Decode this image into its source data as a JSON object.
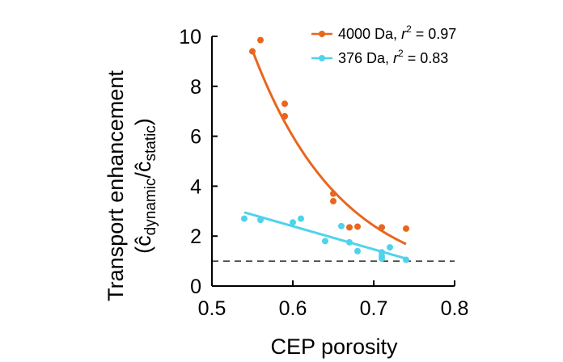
{
  "chart_data": {
    "type": "scatter",
    "xlabel": "CEP porosity",
    "ylabel": {
      "line1": "Transport enhancement",
      "open": "(",
      "c1": "ĉ",
      "sub1": "dynamic",
      "slash": "/",
      "c2": "ĉ",
      "sub2": "static",
      "close": ")"
    },
    "xlim": [
      0.5,
      0.8
    ],
    "ylim": [
      0,
      10
    ],
    "x_ticks": [
      0.5,
      0.6,
      0.7,
      0.8
    ],
    "x_tick_labels": [
      "0.5",
      "0.6",
      "0.7",
      "0.8"
    ],
    "y_ticks": [
      0,
      2,
      4,
      6,
      8,
      10
    ],
    "y_tick_labels": [
      "0",
      "2",
      "4",
      "6",
      "8",
      "10"
    ],
    "reference_line": {
      "y": 1,
      "style": "dashed"
    },
    "legend_position": "top-right",
    "series": [
      {
        "name": "4000 Da",
        "legend_prefix": "4000 Da, ",
        "r_label": "r",
        "r_exp": "2",
        "r_value": " = 0.97",
        "color": "#E8671E",
        "fit": "exponential",
        "points": [
          {
            "x": 0.55,
            "y": 9.4
          },
          {
            "x": 0.56,
            "y": 9.85
          },
          {
            "x": 0.59,
            "y": 7.3
          },
          {
            "x": 0.59,
            "y": 6.8
          },
          {
            "x": 0.65,
            "y": 3.7
          },
          {
            "x": 0.65,
            "y": 3.4
          },
          {
            "x": 0.67,
            "y": 2.35
          },
          {
            "x": 0.68,
            "y": 2.38
          },
          {
            "x": 0.71,
            "y": 2.35
          },
          {
            "x": 0.74,
            "y": 2.3
          }
        ]
      },
      {
        "name": "376 Da",
        "legend_prefix": "376 Da, ",
        "r_label": "r",
        "r_exp": "2",
        "r_value": " = 0.83",
        "color": "#4FD3EC",
        "fit": "linear",
        "points": [
          {
            "x": 0.54,
            "y": 2.7
          },
          {
            "x": 0.56,
            "y": 2.65
          },
          {
            "x": 0.6,
            "y": 2.55
          },
          {
            "x": 0.61,
            "y": 2.7
          },
          {
            "x": 0.64,
            "y": 1.8
          },
          {
            "x": 0.66,
            "y": 2.4
          },
          {
            "x": 0.67,
            "y": 1.75
          },
          {
            "x": 0.68,
            "y": 1.4
          },
          {
            "x": 0.71,
            "y": 1.35
          },
          {
            "x": 0.71,
            "y": 1.2
          },
          {
            "x": 0.71,
            "y": 1.1
          },
          {
            "x": 0.72,
            "y": 1.55
          },
          {
            "x": 0.74,
            "y": 1.05
          }
        ]
      }
    ]
  }
}
